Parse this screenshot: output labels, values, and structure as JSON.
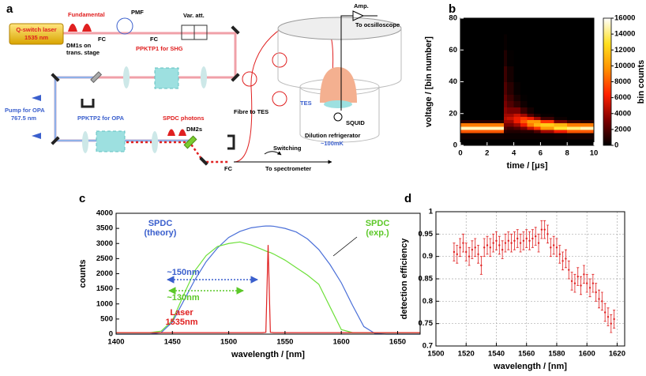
{
  "diagram": {
    "panel_label": "a",
    "laser": [
      "Q-switch laser",
      "1535 nm"
    ],
    "fundamental": "Fundamental",
    "pmf": "PMF",
    "fc": [
      "FC",
      "FC",
      "FC"
    ],
    "var_att": "Var. att.",
    "dm1": [
      "DM1s on",
      "trans. stage"
    ],
    "ppktp1": "PPKTP1 for SHG",
    "pump": [
      "Pump for OPA",
      "767.5 nm"
    ],
    "ppktp2": "PPKTP2 for OPA",
    "spdc": "SPDC photons",
    "dm2": "DM2s",
    "switching": "Switching",
    "to_spectrometer": "To spectrometer",
    "fibre": "Fibre to TES",
    "amp": "Amp.",
    "to_osc": "To ocsilloscope",
    "tes": "TES",
    "squid": "SQUID",
    "fridge": "Dilution refrigerator",
    "temp": "~100mK"
  },
  "chart_data": [
    {
      "type": "heatmap",
      "panel_label": "b",
      "xlabel": "time / [μs]",
      "ylabel": "voltage / [bin number]",
      "zlabel": "bin counts",
      "xlim": [
        0,
        10
      ],
      "xticks": [
        0,
        2,
        4,
        6,
        8,
        10
      ],
      "ylim": [
        0,
        80
      ],
      "yticks": [
        0,
        20,
        40,
        60,
        80
      ],
      "zlim": [
        0,
        16000
      ],
      "zticks": [
        0,
        2000,
        4000,
        6000,
        8000,
        10000,
        12000,
        14000,
        16000
      ],
      "colormap": [
        "#000000",
        "#800000",
        "#ff2000",
        "#ff9000",
        "#ffe020",
        "#ffffff"
      ],
      "grid": false,
      "x_bins": [
        0,
        1,
        2,
        3,
        3.25,
        3.5,
        4,
        4.5,
        5,
        5.5,
        6,
        7,
        8,
        9,
        10
      ],
      "y_bins": [
        0,
        4,
        8,
        10,
        12,
        14,
        16,
        18,
        20,
        24,
        28,
        32,
        40,
        50,
        60,
        70,
        80
      ],
      "z": [
        [
          0,
          0,
          0,
          0,
          0,
          0,
          0,
          0,
          0,
          0,
          0,
          0,
          0,
          0
        ],
        [
          400,
          400,
          400,
          400,
          300,
          300,
          300,
          300,
          300,
          300,
          300,
          400,
          500,
          500
        ],
        [
          8000,
          8000,
          8000,
          8000,
          1000,
          800,
          800,
          1000,
          1000,
          2000,
          4000,
          6000,
          8000,
          8000
        ],
        [
          15000,
          15000,
          15000,
          15000,
          2000,
          1500,
          2000,
          3000,
          5000,
          7000,
          10000,
          13000,
          14000,
          15000
        ],
        [
          9000,
          9000,
          9000,
          9000,
          3000,
          3000,
          4000,
          6000,
          9000,
          11000,
          12000,
          11000,
          9000,
          9000
        ],
        [
          1000,
          1000,
          1000,
          1000,
          4000,
          4000,
          6000,
          8000,
          10000,
          10000,
          7000,
          3000,
          1500,
          1000
        ],
        [
          0,
          0,
          0,
          0,
          4500,
          5000,
          6000,
          7000,
          6000,
          4000,
          1500,
          300,
          0,
          0
        ],
        [
          0,
          0,
          0,
          0,
          4000,
          4000,
          5000,
          4000,
          2000,
          800,
          200,
          0,
          0,
          0
        ],
        [
          0,
          0,
          0,
          0,
          3500,
          3000,
          3000,
          1500,
          500,
          0,
          0,
          0,
          0,
          0
        ],
        [
          0,
          0,
          0,
          0,
          3000,
          2000,
          1200,
          400,
          0,
          0,
          0,
          0,
          0,
          0
        ],
        [
          0,
          0,
          0,
          0,
          2500,
          1500,
          600,
          100,
          0,
          0,
          0,
          0,
          0,
          0
        ],
        [
          0,
          0,
          0,
          0,
          2000,
          1000,
          200,
          0,
          0,
          0,
          0,
          0,
          0,
          0
        ],
        [
          0,
          0,
          0,
          0,
          1500,
          500,
          0,
          0,
          0,
          0,
          0,
          0,
          0,
          0
        ],
        [
          0,
          0,
          0,
          0,
          800,
          100,
          0,
          0,
          0,
          0,
          0,
          0,
          0,
          0
        ],
        [
          0,
          0,
          0,
          0,
          200,
          0,
          0,
          0,
          0,
          0,
          0,
          0,
          0,
          0
        ],
        [
          0,
          0,
          0,
          0,
          0,
          0,
          0,
          0,
          0,
          0,
          0,
          0,
          0,
          0
        ]
      ]
    },
    {
      "type": "line",
      "panel_label": "c",
      "xlabel": "wavelength / [nm]",
      "ylabel": "counts",
      "xlim": [
        1400,
        1670
      ],
      "xticks": [
        1400,
        1450,
        1500,
        1550,
        1600,
        1650
      ],
      "ylim": [
        0,
        4000
      ],
      "yticks": [
        0,
        500,
        1000,
        1500,
        2000,
        2500,
        3000,
        3500,
        4000
      ],
      "grid": false,
      "x": [
        1400,
        1410,
        1420,
        1430,
        1440,
        1450,
        1460,
        1470,
        1480,
        1490,
        1500,
        1510,
        1520,
        1530,
        1533,
        1535,
        1537,
        1540,
        1550,
        1560,
        1570,
        1580,
        1590,
        1600,
        1610,
        1620,
        1630,
        1640,
        1650,
        1660,
        1670
      ],
      "series": [
        {
          "name": "SPDC (theory)",
          "color": "#4a6fd8",
          "values": [
            0,
            0,
            0,
            0,
            50,
            400,
            1100,
            1800,
            2400,
            2850,
            3200,
            3400,
            3520,
            3570,
            3578,
            3580,
            3578,
            3570,
            3500,
            3380,
            3150,
            2800,
            2300,
            1700,
            950,
            250,
            20,
            0,
            0,
            0,
            0
          ]
        },
        {
          "name": "SPDC (exp.)",
          "color": "#6ee03a",
          "values": [
            50,
            50,
            50,
            50,
            100,
            450,
            1300,
            2100,
            2600,
            2900,
            3000,
            3050,
            2950,
            2800,
            2750,
            2720,
            2700,
            2650,
            2450,
            2200,
            1950,
            1650,
            900,
            150,
            50,
            50,
            50,
            50,
            50,
            50,
            50
          ]
        },
        {
          "name": "Laser 1535nm",
          "color": "#e02020",
          "values": [
            50,
            50,
            50,
            50,
            50,
            50,
            50,
            50,
            50,
            50,
            50,
            50,
            50,
            50,
            60,
            2950,
            60,
            50,
            50,
            50,
            50,
            50,
            50,
            50,
            50,
            50,
            50,
            50,
            50,
            50,
            50
          ]
        }
      ],
      "annotations": [
        {
          "lines": [
            "SPDC",
            "(theory)"
          ],
          "color": "#3a5fcd"
        },
        {
          "lines": [
            "SPDC",
            "(exp.)"
          ],
          "color": "#5cc828"
        },
        {
          "lines": [
            "~150nm"
          ],
          "color": "#3a5fcd"
        },
        {
          "lines": [
            "~130nm"
          ],
          "color": "#5cc828"
        },
        {
          "lines": [
            "Laser",
            "1535nm"
          ],
          "color": "#e02020"
        }
      ]
    },
    {
      "type": "scatter",
      "panel_label": "d",
      "xlabel": "wavelength / [nm]",
      "ylabel": "detection efficiency",
      "xlim": [
        1500,
        1625
      ],
      "xticks": [
        1500,
        1520,
        1540,
        1560,
        1580,
        1600,
        1620
      ],
      "ylim": [
        0.7,
        1
      ],
      "yticks": [
        0.7,
        0.75,
        0.8,
        0.85,
        0.9,
        0.95,
        1
      ],
      "grid": true,
      "color": "#e02020",
      "x": [
        1512,
        1514,
        1516,
        1518,
        1520,
        1522,
        1524,
        1526,
        1528,
        1530,
        1532,
        1534,
        1536,
        1538,
        1540,
        1542,
        1544,
        1546,
        1548,
        1550,
        1552,
        1554,
        1556,
        1558,
        1560,
        1562,
        1564,
        1566,
        1568,
        1570,
        1572,
        1574,
        1576,
        1578,
        1580,
        1582,
        1584,
        1586,
        1588,
        1590,
        1592,
        1594,
        1596,
        1598,
        1600,
        1602,
        1604,
        1606,
        1608,
        1610,
        1612,
        1614,
        1616,
        1618
      ],
      "values": [
        0.91,
        0.905,
        0.92,
        0.93,
        0.91,
        0.9,
        0.915,
        0.92,
        0.905,
        0.88,
        0.92,
        0.925,
        0.92,
        0.93,
        0.935,
        0.925,
        0.915,
        0.93,
        0.935,
        0.93,
        0.935,
        0.94,
        0.93,
        0.935,
        0.94,
        0.935,
        0.94,
        0.945,
        0.93,
        0.96,
        0.96,
        0.95,
        0.92,
        0.925,
        0.92,
        0.905,
        0.89,
        0.895,
        0.87,
        0.845,
        0.84,
        0.855,
        0.835,
        0.86,
        0.84,
        0.83,
        0.84,
        0.82,
        0.805,
        0.8,
        0.775,
        0.765,
        0.75,
        0.76
      ],
      "errors": [
        0.02,
        0.02,
        0.02,
        0.02,
        0.02,
        0.02,
        0.02,
        0.02,
        0.02,
        0.02,
        0.02,
        0.02,
        0.02,
        0.02,
        0.02,
        0.02,
        0.02,
        0.02,
        0.02,
        0.02,
        0.02,
        0.02,
        0.02,
        0.02,
        0.02,
        0.02,
        0.02,
        0.02,
        0.02,
        0.02,
        0.02,
        0.02,
        0.02,
        0.02,
        0.02,
        0.02,
        0.02,
        0.02,
        0.02,
        0.02,
        0.02,
        0.02,
        0.02,
        0.02,
        0.02,
        0.02,
        0.02,
        0.02,
        0.02,
        0.02,
        0.02,
        0.02,
        0.02,
        0.02
      ]
    }
  ]
}
